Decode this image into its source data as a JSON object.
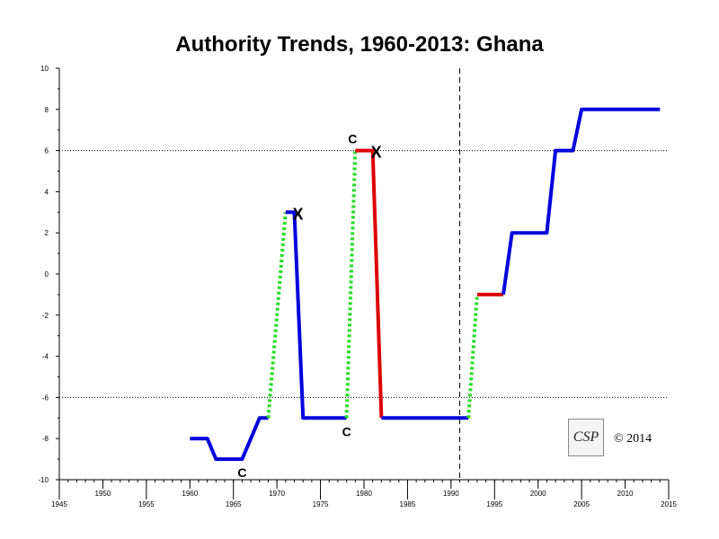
{
  "chart_data": {
    "type": "line",
    "title": "Authority Trends, 1960-2013: Ghana",
    "xlim": [
      1945,
      2015
    ],
    "ylim": [
      -10,
      10
    ],
    "x_ticks": [
      1945,
      1950,
      1955,
      1960,
      1965,
      1970,
      1975,
      1980,
      1985,
      1990,
      1995,
      2000,
      2005,
      2010,
      2015
    ],
    "y_ticks": [
      -10,
      -8,
      -6,
      -4,
      -2,
      0,
      2,
      4,
      6,
      8,
      10
    ],
    "reference_lines_y": [
      6,
      -6
    ],
    "reference_line_x": 1991,
    "segments": [
      {
        "color": "#0000dd",
        "style": "solid",
        "points": [
          [
            1960,
            -8
          ],
          [
            1962,
            -8
          ],
          [
            1963,
            -9
          ],
          [
            1966,
            -9
          ],
          [
            1968,
            -7
          ],
          [
            1969,
            -7
          ]
        ]
      },
      {
        "color": "#22dd22",
        "style": "dotted",
        "points": [
          [
            1969,
            -7
          ],
          [
            1971,
            3
          ]
        ]
      },
      {
        "color": "#0000dd",
        "style": "solid",
        "points": [
          [
            1971,
            3
          ],
          [
            1972,
            3
          ],
          [
            1973,
            -7
          ],
          [
            1978,
            -7
          ]
        ]
      },
      {
        "color": "#22dd22",
        "style": "dotted",
        "points": [
          [
            1978,
            -7
          ],
          [
            1979,
            6
          ]
        ]
      },
      {
        "color": "#dd0000",
        "style": "solid",
        "points": [
          [
            1979,
            6
          ],
          [
            1981,
            6
          ],
          [
            1982,
            -7
          ]
        ]
      },
      {
        "color": "#0000dd",
        "style": "solid",
        "points": [
          [
            1982,
            -7
          ],
          [
            1992,
            -7
          ]
        ]
      },
      {
        "color": "#22dd22",
        "style": "dotted",
        "points": [
          [
            1992,
            -7
          ],
          [
            1993,
            -1
          ]
        ]
      },
      {
        "color": "#dd0000",
        "style": "solid",
        "points": [
          [
            1993,
            -1
          ],
          [
            1996,
            -1
          ]
        ]
      },
      {
        "color": "#0000dd",
        "style": "solid",
        "points": [
          [
            1996,
            -1
          ],
          [
            1997,
            2
          ],
          [
            2001,
            2
          ],
          [
            2002,
            6
          ],
          [
            2004,
            6
          ],
          [
            2005,
            8
          ],
          [
            2014,
            8
          ]
        ]
      }
    ],
    "annotations": [
      {
        "text": "C",
        "x": 1966,
        "y": -9,
        "position": "below"
      },
      {
        "text": "X",
        "x": 1972,
        "y": 3,
        "position": "at"
      },
      {
        "text": "C",
        "x": 1978,
        "y": -7,
        "position": "below"
      },
      {
        "text": "C",
        "x": 1979,
        "y": 6,
        "position": "above"
      },
      {
        "text": "X",
        "x": 1981,
        "y": 6,
        "position": "at"
      }
    ]
  },
  "logo": {
    "text": "CSP"
  },
  "copyright": "© 2014"
}
